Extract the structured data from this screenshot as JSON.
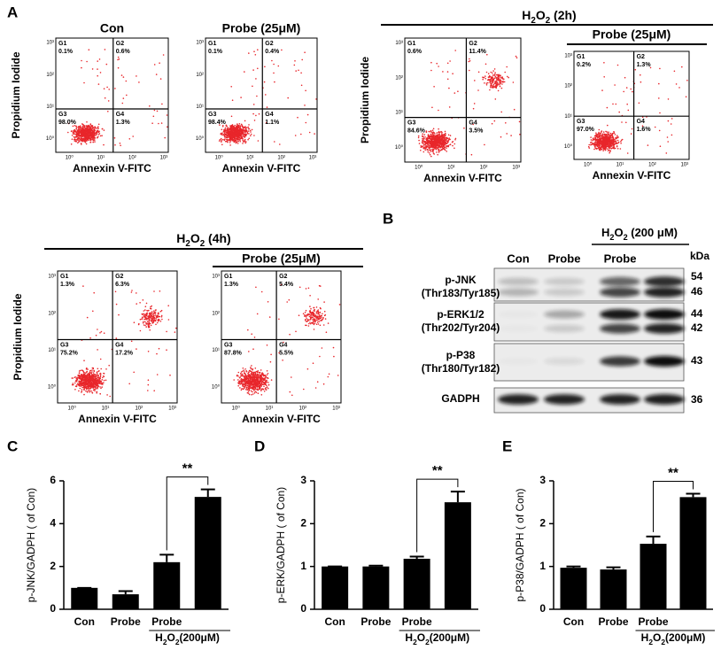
{
  "panel_labels": [
    "A",
    "B",
    "C",
    "D",
    "E"
  ],
  "flow": {
    "y_label": "Propidium Iodide",
    "x_label": "Annexin V-FITC",
    "ticks": [
      "10⁰",
      "10¹",
      "10²",
      "10³"
    ],
    "groups": [
      {
        "label": [
          "H",
          "2",
          "O",
          "2",
          " (2h)"
        ]
      },
      {
        "label": [
          "H",
          "2",
          "O",
          "2",
          "  (4h)"
        ]
      }
    ],
    "plots": [
      {
        "title": "Con",
        "quadrants": [
          {
            "name": "G1",
            "value": "0.1%"
          },
          {
            "name": "G2",
            "value": "0.6%"
          },
          {
            "name": "G3",
            "value": "98.0%"
          },
          {
            "name": "G4",
            "value": "1.3%"
          }
        ]
      },
      {
        "title": "Probe (25μM)",
        "quadrants": [
          {
            "name": "G1",
            "value": "0.1%"
          },
          {
            "name": "G2",
            "value": "0.4%"
          },
          {
            "name": "G3",
            "value": "98.4%"
          },
          {
            "name": "G4",
            "value": "1.1%"
          }
        ]
      },
      {
        "quadrants": [
          {
            "name": "G1",
            "value": "0.6%"
          },
          {
            "name": "G2",
            "value": "11.4%"
          },
          {
            "name": "G3",
            "value": "84.6%"
          },
          {
            "name": "G4",
            "value": "3.5%"
          }
        ]
      },
      {
        "title": "Probe (25μM)",
        "quadrants": [
          {
            "name": "G1",
            "value": "0.2%"
          },
          {
            "name": "G2",
            "value": "1.3%"
          },
          {
            "name": "G3",
            "value": "97.0%"
          },
          {
            "name": "G4",
            "value": "1.6%"
          }
        ]
      },
      {
        "quadrants": [
          {
            "name": "G1",
            "value": "1.3%"
          },
          {
            "name": "G2",
            "value": "6.3%"
          },
          {
            "name": "G3",
            "value": "75.2%"
          },
          {
            "name": "G4",
            "value": "17.2%"
          }
        ]
      },
      {
        "title": "Probe (25μM)",
        "quadrants": [
          {
            "name": "G1",
            "value": "1.3%"
          },
          {
            "name": "G2",
            "value": "5.4%"
          },
          {
            "name": "G3",
            "value": "87.8%"
          },
          {
            "name": "G4",
            "value": "5.5%"
          }
        ]
      }
    ]
  },
  "blot": {
    "columns": [
      "Con",
      "Probe",
      "Probe"
    ],
    "treatment": [
      "H",
      "2",
      "O",
      "2",
      " (200 μM)"
    ],
    "kda_label": "kDa",
    "rows": [
      {
        "label": [
          "p-JNK",
          "(Thr183/Tyr185)"
        ],
        "kda": [
          "54",
          "46"
        ]
      },
      {
        "label": [
          "p-ERK1/2",
          "(Thr202/Tyr204)"
        ],
        "kda": [
          "44",
          "42"
        ]
      },
      {
        "label": [
          "p-P38",
          "(Thr180/Tyr182)"
        ],
        "kda": [
          "43"
        ]
      },
      {
        "label": [
          "GADPH"
        ],
        "kda": [
          "36"
        ]
      }
    ]
  },
  "chart_data": [
    {
      "type": "bar",
      "y_label": "p-JNK/GADPH ( of Con)",
      "categories": [
        "Con",
        "Probe",
        "Probe",
        null
      ],
      "group_label": [
        "H",
        "2",
        "O",
        "2",
        "(200μM)"
      ],
      "values": [
        1.0,
        0.7,
        2.2,
        5.25
      ],
      "errors": [
        0.0,
        0.15,
        0.35,
        0.35
      ],
      "color": "#000000",
      "ylim": [
        0,
        6
      ],
      "yticks": [
        0,
        2,
        4,
        6
      ],
      "significance": "**"
    },
    {
      "type": "bar",
      "y_label": "p-ERK/GADPH ( of Con)",
      "categories": [
        "Con",
        "Probe",
        "Probe",
        null
      ],
      "group_label": [
        "H",
        "2",
        "O",
        "2",
        "(200μM)"
      ],
      "values": [
        1.0,
        1.0,
        1.18,
        2.5
      ],
      "errors": [
        0.0,
        0.02,
        0.05,
        0.25
      ],
      "color": "#000000",
      "ylim": [
        0,
        3
      ],
      "yticks": [
        0,
        1,
        2,
        3
      ],
      "significance": "**"
    },
    {
      "type": "bar",
      "y_label": "p-P38/GADPH ( of Con)",
      "categories": [
        "Con",
        "Probe",
        "Probe",
        null
      ],
      "group_label": [
        "H",
        "2",
        "O",
        "2",
        "(200μM)"
      ],
      "values": [
        0.97,
        0.93,
        1.53,
        2.62
      ],
      "errors": [
        0.03,
        0.05,
        0.17,
        0.08
      ],
      "color": "#000000",
      "ylim": [
        0,
        3
      ],
      "yticks": [
        0,
        1,
        2,
        3
      ],
      "significance": "**"
    }
  ]
}
